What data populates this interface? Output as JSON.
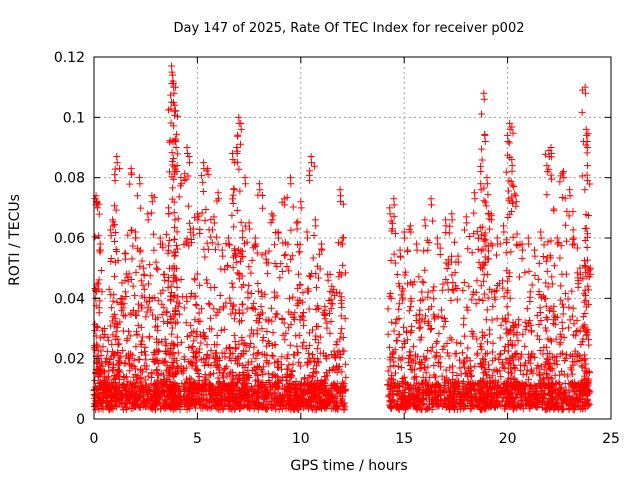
{
  "chart_data": {
    "type": "scatter",
    "title": "Day 147 of 2025, Rate Of TEC Index for receiver p002",
    "xlabel": "GPS time / hours",
    "ylabel": "ROTI / TECUs",
    "xlim": [
      0,
      25
    ],
    "ylim": [
      0,
      0.12
    ],
    "xticks": [
      0,
      5,
      10,
      15,
      20,
      25
    ],
    "xtick_labels": [
      "0",
      "5",
      "10",
      "15",
      "20",
      "25"
    ],
    "yticks": [
      0,
      0.02,
      0.04,
      0.06,
      0.08,
      0.1,
      0.12
    ],
    "ytick_labels": [
      "0",
      "0.02",
      "0.04",
      "0.06",
      "0.08",
      "0.1",
      "0.12"
    ],
    "grid": true,
    "marker": "+",
    "color": "#ff0000",
    "data_gap_hours": [
      12.2,
      14.2
    ],
    "series": [
      {
        "name": "ROTI",
        "points": [
          [
            0.05,
            0.008
          ],
          [
            0.1,
            0.074
          ],
          [
            0.15,
            0.072
          ],
          [
            0.2,
            0.045
          ],
          [
            0.3,
            0.058
          ],
          [
            0.5,
            0.03
          ],
          [
            0.7,
            0.018
          ],
          [
            0.9,
            0.066
          ],
          [
            1.0,
            0.081
          ],
          [
            1.1,
            0.087
          ],
          [
            1.3,
            0.04
          ],
          [
            1.5,
            0.055
          ],
          [
            1.8,
            0.083
          ],
          [
            2.0,
            0.062
          ],
          [
            2.2,
            0.08
          ],
          [
            2.4,
            0.05
          ],
          [
            2.6,
            0.068
          ],
          [
            2.8,
            0.074
          ],
          [
            3.0,
            0.052
          ],
          [
            3.2,
            0.06
          ],
          [
            3.4,
            0.048
          ],
          [
            3.6,
            0.07
          ],
          [
            3.75,
            0.117
          ],
          [
            3.8,
            0.114
          ],
          [
            3.85,
            0.11
          ],
          [
            3.9,
            0.104
          ],
          [
            3.95,
            0.092
          ],
          [
            4.2,
            0.08
          ],
          [
            4.5,
            0.09
          ],
          [
            4.6,
            0.087
          ],
          [
            4.8,
            0.063
          ],
          [
            5.0,
            0.068
          ],
          [
            5.3,
            0.085
          ],
          [
            5.5,
            0.083
          ],
          [
            5.8,
            0.067
          ],
          [
            6.0,
            0.075
          ],
          [
            6.2,
            0.056
          ],
          [
            6.5,
            0.06
          ],
          [
            6.7,
            0.088
          ],
          [
            6.9,
            0.09
          ],
          [
            7.0,
            0.1
          ],
          [
            7.1,
            0.098
          ],
          [
            7.3,
            0.08
          ],
          [
            7.5,
            0.065
          ],
          [
            7.8,
            0.06
          ],
          [
            8.0,
            0.078
          ],
          [
            8.3,
            0.055
          ],
          [
            8.6,
            0.068
          ],
          [
            8.9,
            0.062
          ],
          [
            9.2,
            0.073
          ],
          [
            9.5,
            0.08
          ],
          [
            9.8,
            0.065
          ],
          [
            10.0,
            0.072
          ],
          [
            10.3,
            0.062
          ],
          [
            10.5,
            0.087
          ],
          [
            10.7,
            0.066
          ],
          [
            11.0,
            0.058
          ],
          [
            11.3,
            0.048
          ],
          [
            11.5,
            0.044
          ],
          [
            11.9,
            0.076
          ],
          [
            12.0,
            0.06
          ],
          [
            14.3,
            0.07
          ],
          [
            14.5,
            0.073
          ],
          [
            14.8,
            0.056
          ],
          [
            15.0,
            0.062
          ],
          [
            15.3,
            0.064
          ],
          [
            15.6,
            0.058
          ],
          [
            16.0,
            0.066
          ],
          [
            16.3,
            0.073
          ],
          [
            16.6,
            0.06
          ],
          [
            17.0,
            0.066
          ],
          [
            17.3,
            0.068
          ],
          [
            17.6,
            0.054
          ],
          [
            18.0,
            0.067
          ],
          [
            18.4,
            0.075
          ],
          [
            18.7,
            0.078
          ],
          [
            18.85,
            0.108
          ],
          [
            18.9,
            0.094
          ],
          [
            19.0,
            0.08
          ],
          [
            19.2,
            0.068
          ],
          [
            19.5,
            0.06
          ],
          [
            19.8,
            0.064
          ],
          [
            20.0,
            0.094
          ],
          [
            20.1,
            0.098
          ],
          [
            20.2,
            0.086
          ],
          [
            20.4,
            0.074
          ],
          [
            20.7,
            0.058
          ],
          [
            21.0,
            0.06
          ],
          [
            21.3,
            0.056
          ],
          [
            21.6,
            0.062
          ],
          [
            21.9,
            0.084
          ],
          [
            22.0,
            0.089
          ],
          [
            22.1,
            0.09
          ],
          [
            22.4,
            0.06
          ],
          [
            22.7,
            0.082
          ],
          [
            23.0,
            0.076
          ],
          [
            23.2,
            0.06
          ],
          [
            23.5,
            0.05
          ],
          [
            23.75,
            0.11
          ],
          [
            23.8,
            0.096
          ],
          [
            23.85,
            0.092
          ],
          [
            24.0,
            0.05
          ]
        ],
        "baseline_note": "Dense cluster of points between 0.002 and 0.02 TECU across 0-12.2 h and 14.2-24 h"
      }
    ]
  }
}
